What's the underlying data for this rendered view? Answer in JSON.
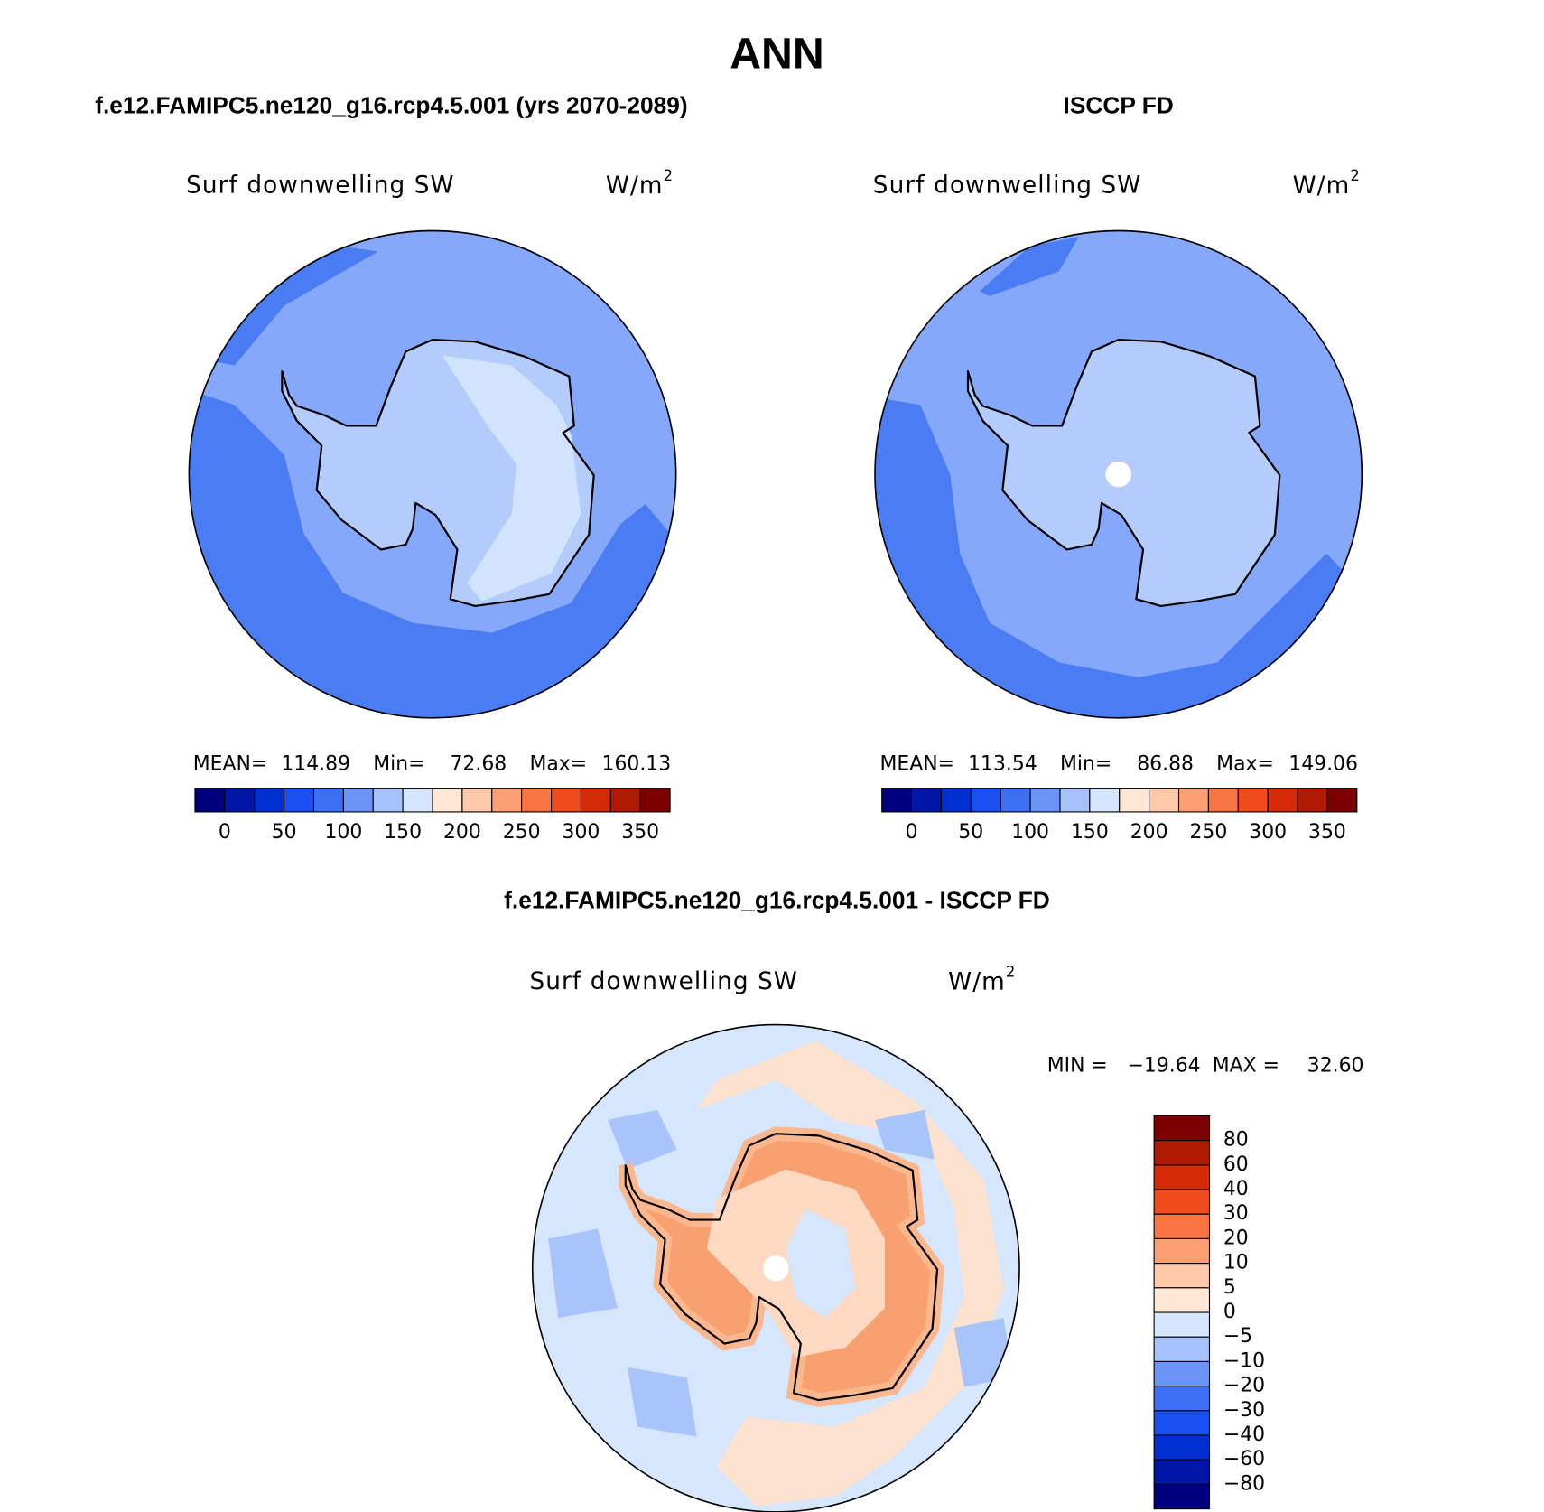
{
  "header": {
    "title": "ANN"
  },
  "panels": [
    {
      "title": "f.e12.FAMIPC5.ne120_g16.rcp4.5.001 (yrs 2070-2089)",
      "variable": "Surf downwelling SW",
      "units": "W/m",
      "units_exponent": "2",
      "stats": [
        {
          "label": "MEAN=",
          "value": "114.89"
        },
        {
          "label": "Min=",
          "value": "72.68"
        },
        {
          "label": "Max=",
          "value": "160.13"
        }
      ]
    },
    {
      "title": "ISCCP FD",
      "variable": "Surf downwelling SW",
      "units": "W/m",
      "units_exponent": "2",
      "stats": [
        {
          "label": "MEAN=",
          "value": "113.54"
        },
        {
          "label": "Min=",
          "value": "86.88"
        },
        {
          "label": "Max=",
          "value": "149.06"
        }
      ]
    }
  ],
  "colorbar": {
    "colors": [
      "#00007f",
      "#0016a6",
      "#0030d2",
      "#1a4ff2",
      "#3c6ff3",
      "#6c93f8",
      "#a6c1fb",
      "#d4e5fd",
      "#ffe7d6",
      "#fec8a9",
      "#fca073",
      "#f87442",
      "#f04a1d",
      "#d42a06",
      "#b01a02",
      "#7d0000"
    ],
    "labels": [
      "0",
      "50",
      "100",
      "150",
      "200",
      "250",
      "300",
      "350"
    ]
  },
  "difference": {
    "title": "f.e12.FAMIPC5.ne120_g16.rcp4.5.001 - ISCCP FD",
    "variable": "Surf downwelling SW",
    "units": "W/m",
    "units_exponent": "2",
    "stats": [
      {
        "label": "MIN =",
        "value": "−19.64"
      },
      {
        "label": "MAX =",
        "value": "32.60"
      }
    ],
    "colorbar": {
      "colors": [
        "#7d0000",
        "#b01a02",
        "#d42a06",
        "#f04a1d",
        "#f87442",
        "#fca073",
        "#fec8a9",
        "#ffe7d6",
        "#d4e5fd",
        "#a6c1fb",
        "#6c93f8",
        "#3c6ff3",
        "#1a4ff2",
        "#0030d2",
        "#0016a6",
        "#00007f"
      ],
      "labels": [
        "80",
        "60",
        "40",
        "30",
        "20",
        "10",
        "5",
        "0",
        "−5",
        "−10",
        "−20",
        "−30",
        "−40",
        "−60",
        "−80"
      ]
    }
  }
}
